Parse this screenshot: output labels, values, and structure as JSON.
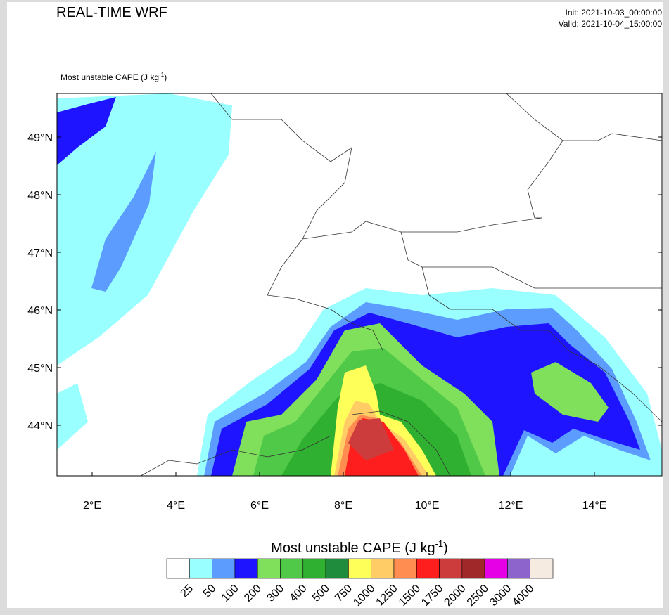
{
  "header": {
    "title": "REAL-TIME WRF",
    "init": "Init: 2021-10-03_00:00:00",
    "valid": "Valid: 2021-10-04_15:00:00"
  },
  "map": {
    "label_prefix": "Most unstable CAPE  (J kg",
    "label_exponent": "-1",
    "label_suffix": ")",
    "lat_labels": [
      "49°N",
      "48°N",
      "47°N",
      "46°N",
      "45°N",
      "44°N"
    ],
    "lon_labels": [
      "2°E",
      "4°E",
      "6°E",
      "8°E",
      "10°E",
      "12°E",
      "14°E"
    ]
  },
  "colorbar": {
    "title_prefix": "Most unstable CAPE  (J kg",
    "title_exponent": "-1",
    "title_suffix": ")",
    "colors": [
      "#ffffff",
      "#99ffff",
      "#5c9cff",
      "#1e14ff",
      "#80e05c",
      "#50c848",
      "#30b030",
      "#1e8c3c",
      "#ffff5a",
      "#ffcc66",
      "#ff8c50",
      "#ff1e1e",
      "#cc3c3c",
      "#a02828",
      "#e600e6",
      "#8c64cc",
      "#f5ebe1"
    ],
    "levels": [
      25,
      50,
      100,
      200,
      300,
      400,
      500,
      750,
      1000,
      1250,
      1500,
      1750,
      2000,
      2500,
      3000,
      4000
    ]
  }
}
